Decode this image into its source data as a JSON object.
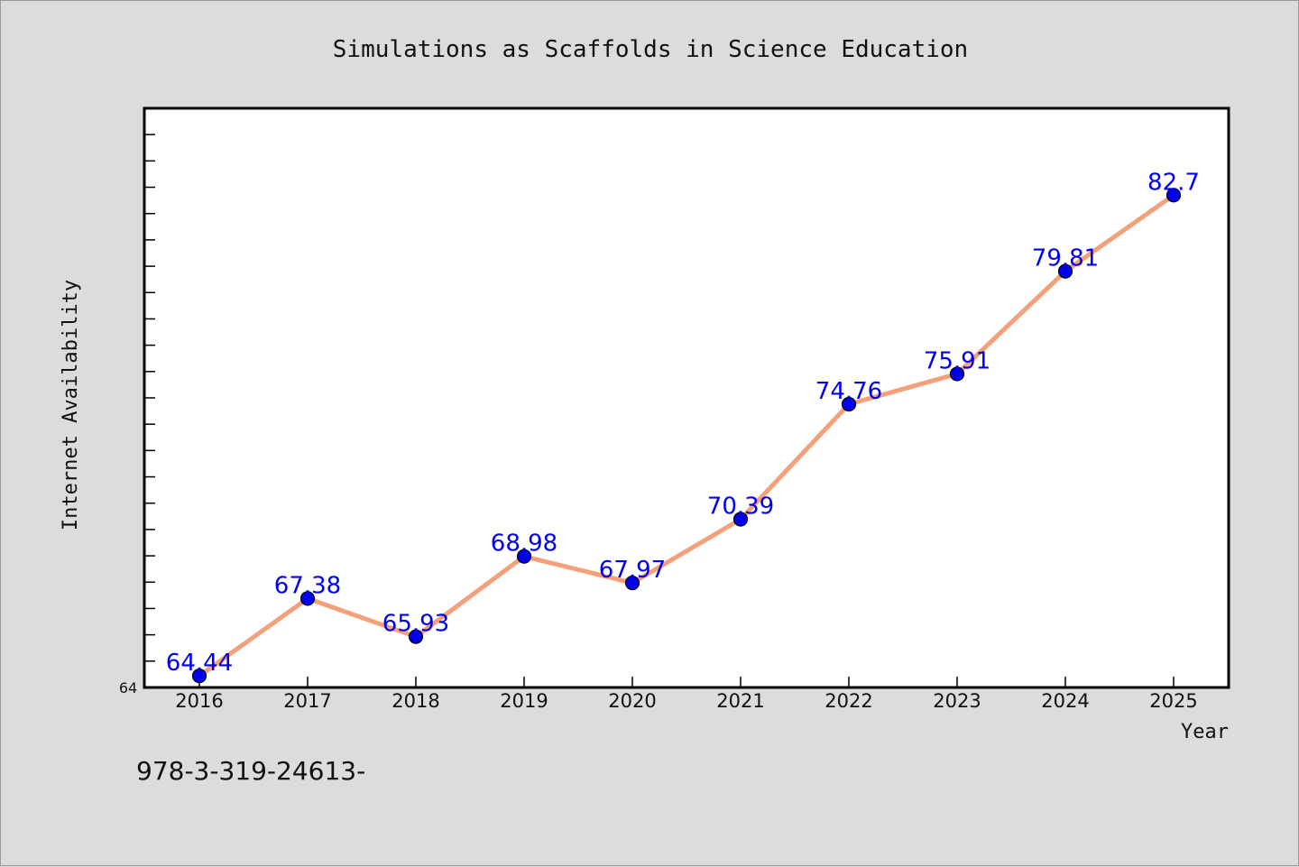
{
  "chart_data": {
    "type": "line",
    "title": "Simulations as Scaffolds in Science Education",
    "xlabel": "Year",
    "ylabel": "Internet Availability",
    "x": [
      "2016",
      "2017",
      "2018",
      "2019",
      "2020",
      "2021",
      "2022",
      "2023",
      "2024",
      "2025"
    ],
    "series": [
      {
        "values": [
          64.44,
          67.38,
          65.93,
          68.98,
          67.97,
          70.39,
          74.76,
          75.91,
          79.81,
          82.7
        ],
        "labels": [
          "64.44",
          "67.38",
          "65.93",
          "68.98",
          "67.97",
          "70.39",
          "74.76",
          "75.91",
          "79.81",
          "82.7"
        ],
        "line_color": "#f4a07a",
        "marker_color": "#0000ee"
      }
    ],
    "ylim": [
      64,
      86
    ],
    "y_tick_labels": [
      "64"
    ],
    "grid": false,
    "legend": "none"
  },
  "footer": {
    "text": "978-3-319-24613-"
  }
}
